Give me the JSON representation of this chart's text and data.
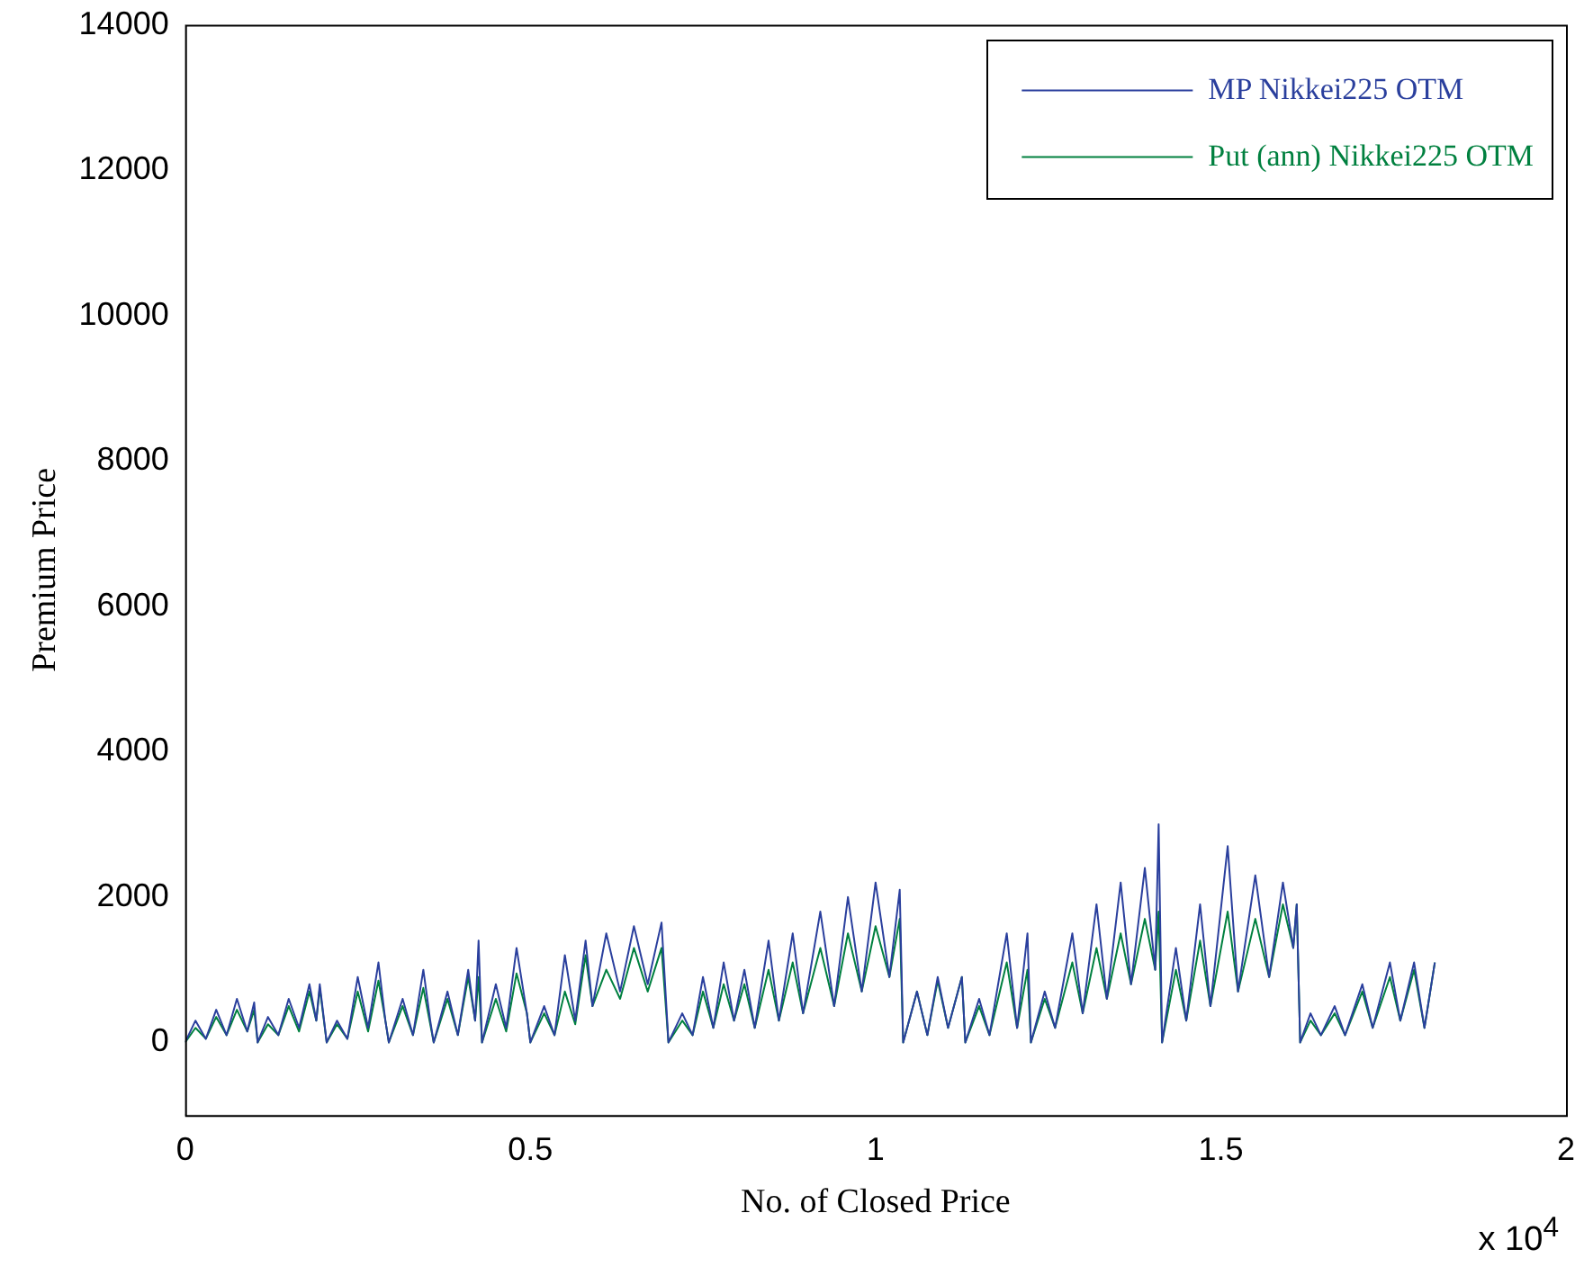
{
  "chart_data": {
    "type": "line",
    "xlabel": "No. of Closed Price",
    "ylabel": "Premium Price",
    "annotations": [
      "x 10$^{4}$"
    ],
    "x": [
      0,
      0.015,
      0.03,
      0.045,
      0.06,
      0.075,
      0.09,
      0.1,
      0.105,
      0.12,
      0.135,
      0.15,
      0.165,
      0.18,
      0.19,
      0.195,
      0.205,
      0.22,
      0.235,
      0.25,
      0.265,
      0.28,
      0.29,
      0.295,
      0.315,
      0.33,
      0.345,
      0.355,
      0.36,
      0.38,
      0.395,
      0.41,
      0.42,
      0.425,
      0.43,
      0.45,
      0.465,
      0.48,
      0.495,
      0.5,
      0.52,
      0.535,
      0.55,
      0.565,
      0.58,
      0.59,
      0.61,
      0.63,
      0.65,
      0.67,
      0.69,
      0.7,
      0.72,
      0.735,
      0.75,
      0.765,
      0.78,
      0.795,
      0.81,
      0.825,
      0.845,
      0.86,
      0.88,
      0.895,
      0.92,
      0.94,
      0.96,
      0.98,
      1,
      1.02,
      1.035,
      1.04,
      1.06,
      1.075,
      1.09,
      1.105,
      1.125,
      1.13,
      1.15,
      1.165,
      1.19,
      1.205,
      1.22,
      1.225,
      1.245,
      1.26,
      1.285,
      1.3,
      1.32,
      1.335,
      1.355,
      1.37,
      1.39,
      1.405,
      1.41,
      1.415,
      1.435,
      1.45,
      1.47,
      1.485,
      1.51,
      1.525,
      1.55,
      1.57,
      1.59,
      1.605,
      1.61,
      1.615,
      1.63,
      1.645,
      1.665,
      1.68,
      1.705,
      1.72,
      1.745,
      1.76,
      1.78,
      1.795,
      1.81
    ],
    "series": [
      {
        "name": "MP Nikkei225 OTM",
        "color": "#2a3f9d",
        "values": [
          0,
          300,
          50,
          450,
          100,
          600,
          150,
          550,
          0,
          350,
          100,
          600,
          200,
          800,
          300,
          800,
          0,
          300,
          50,
          900,
          200,
          1100,
          300,
          0,
          600,
          100,
          1000,
          300,
          0,
          700,
          100,
          1000,
          300,
          1400,
          0,
          800,
          200,
          1300,
          400,
          0,
          500,
          100,
          1200,
          300,
          1400,
          500,
          1500,
          700,
          1600,
          800,
          1650,
          0,
          400,
          100,
          900,
          200,
          1100,
          300,
          1000,
          200,
          1400,
          300,
          1500,
          400,
          1800,
          500,
          2000,
          700,
          2200,
          900,
          2100,
          0,
          700,
          100,
          900,
          200,
          900,
          0,
          600,
          100,
          1500,
          200,
          1500,
          0,
          700,
          200,
          1500,
          400,
          1900,
          600,
          2200,
          800,
          2400,
          1000,
          3000,
          0,
          1300,
          300,
          1900,
          500,
          2700,
          700,
          2300,
          900,
          2200,
          1300,
          1900,
          0,
          400,
          100,
          500,
          100,
          800,
          200,
          1100,
          300,
          1100,
          200,
          1100
        ]
      },
      {
        "name": "Put (ann) Nikkei225 OTM",
        "color": "#00803f",
        "values": [
          0,
          200,
          50,
          350,
          100,
          450,
          150,
          450,
          0,
          250,
          100,
          500,
          150,
          700,
          300,
          750,
          0,
          250,
          50,
          700,
          150,
          850,
          300,
          0,
          500,
          100,
          750,
          250,
          0,
          600,
          100,
          900,
          300,
          900,
          0,
          600,
          150,
          950,
          400,
          0,
          400,
          100,
          700,
          250,
          1200,
          500,
          1000,
          600,
          1300,
          700,
          1300,
          0,
          300,
          100,
          700,
          200,
          800,
          300,
          800,
          200,
          1000,
          300,
          1100,
          400,
          1300,
          500,
          1500,
          700,
          1600,
          900,
          1700,
          0,
          700,
          100,
          850,
          200,
          900,
          0,
          500,
          100,
          1100,
          200,
          1000,
          0,
          600,
          200,
          1100,
          400,
          1300,
          600,
          1500,
          800,
          1700,
          1000,
          1800,
          0,
          1000,
          300,
          1400,
          500,
          1800,
          700,
          1700,
          900,
          1900,
          1300,
          1900,
          0,
          300,
          100,
          400,
          100,
          700,
          200,
          900,
          300,
          1000,
          200,
          1100
        ]
      }
    ],
    "xlim": [
      0,
      2
    ],
    "xticks": [
      0,
      0.5,
      1,
      1.5,
      2
    ],
    "ylim": [
      -1000,
      14000
    ],
    "yticks": [
      0,
      2000,
      4000,
      6000,
      8000,
      10000,
      12000,
      14000
    ],
    "legend": "top right",
    "grid": false,
    "line_style": "solid"
  }
}
